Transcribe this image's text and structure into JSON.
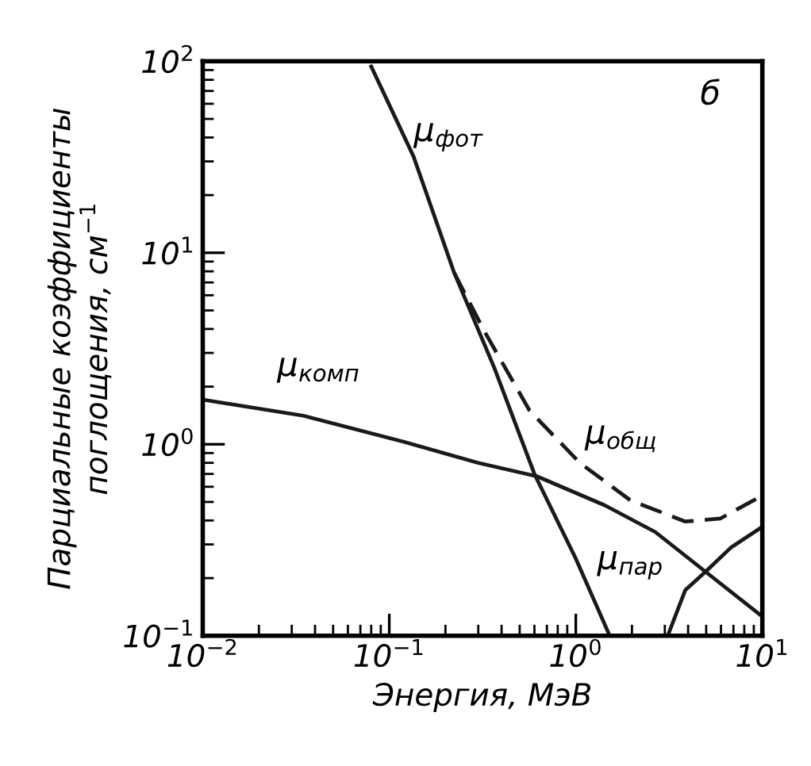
{
  "chart_data": {
    "type": "line",
    "xlabel": "Энергия, МэВ",
    "ylabel": "Парциальные коэффициенты\nпоглощения, см$^{−1}$",
    "log": "xy",
    "grid": false,
    "marker": "none",
    "xlim": [
      0.01,
      10
    ],
    "ylim": [
      0.1,
      100
    ],
    "xticks": [
      {
        "value": 0.01,
        "label": "10$^{−2}$"
      },
      {
        "value": 0.1,
        "label": "10$^{−1}$"
      },
      {
        "value": 1,
        "label": "10$^{0}$"
      },
      {
        "value": 10,
        "label": "10$^{1}$"
      }
    ],
    "yticks": [
      {
        "value": 0.1,
        "label": "10$^{−1}$"
      },
      {
        "value": 1,
        "label": "10$^{0}$"
      },
      {
        "value": 10,
        "label": "10$^{1}$"
      },
      {
        "value": 100,
        "label": "10$^{2}$"
      }
    ],
    "series": [
      {
        "color": "#1a1a1a",
        "line_style": "solid",
        "x": [
          0.08,
          0.135,
          0.223,
          0.366,
          0.6,
          1.0,
          1.52
        ],
        "values": [
          94,
          31.8,
          7.85,
          2.5,
          0.7,
          0.253,
          0.1
        ]
      },
      {
        "color": "#1a1a1a",
        "line_style": "solid",
        "x": [
          0.01,
          0.0346,
          0.12,
          0.3,
          0.62,
          1.43,
          2.67,
          4.96,
          10
        ],
        "values": [
          1.71,
          1.41,
          1.03,
          0.8,
          0.68,
          0.48,
          0.348,
          0.216,
          0.126
        ]
      },
      {
        "color": "#1a1a1a",
        "line_style": "dashed",
        "x": [
          0.223,
          0.323,
          0.565,
          1.05,
          1.96,
          3.86,
          5.97,
          10
        ],
        "values": [
          7.85,
          3.9,
          1.5,
          0.8,
          0.51,
          0.395,
          0.41,
          0.54
        ]
      },
      {
        "color": "#1a1a1a",
        "line_style": "solid",
        "x": [
          3.11,
          3.86,
          4.96,
          6.76,
          10
        ],
        "values": [
          0.1,
          0.173,
          0.216,
          0.288,
          0.371
        ]
      }
    ],
    "annotations": [
      "μ$_{фот}$",
      "μ$_{комп}$",
      "μ$_{общ}$",
      "μ$_{пар}$",
      "б"
    ]
  }
}
